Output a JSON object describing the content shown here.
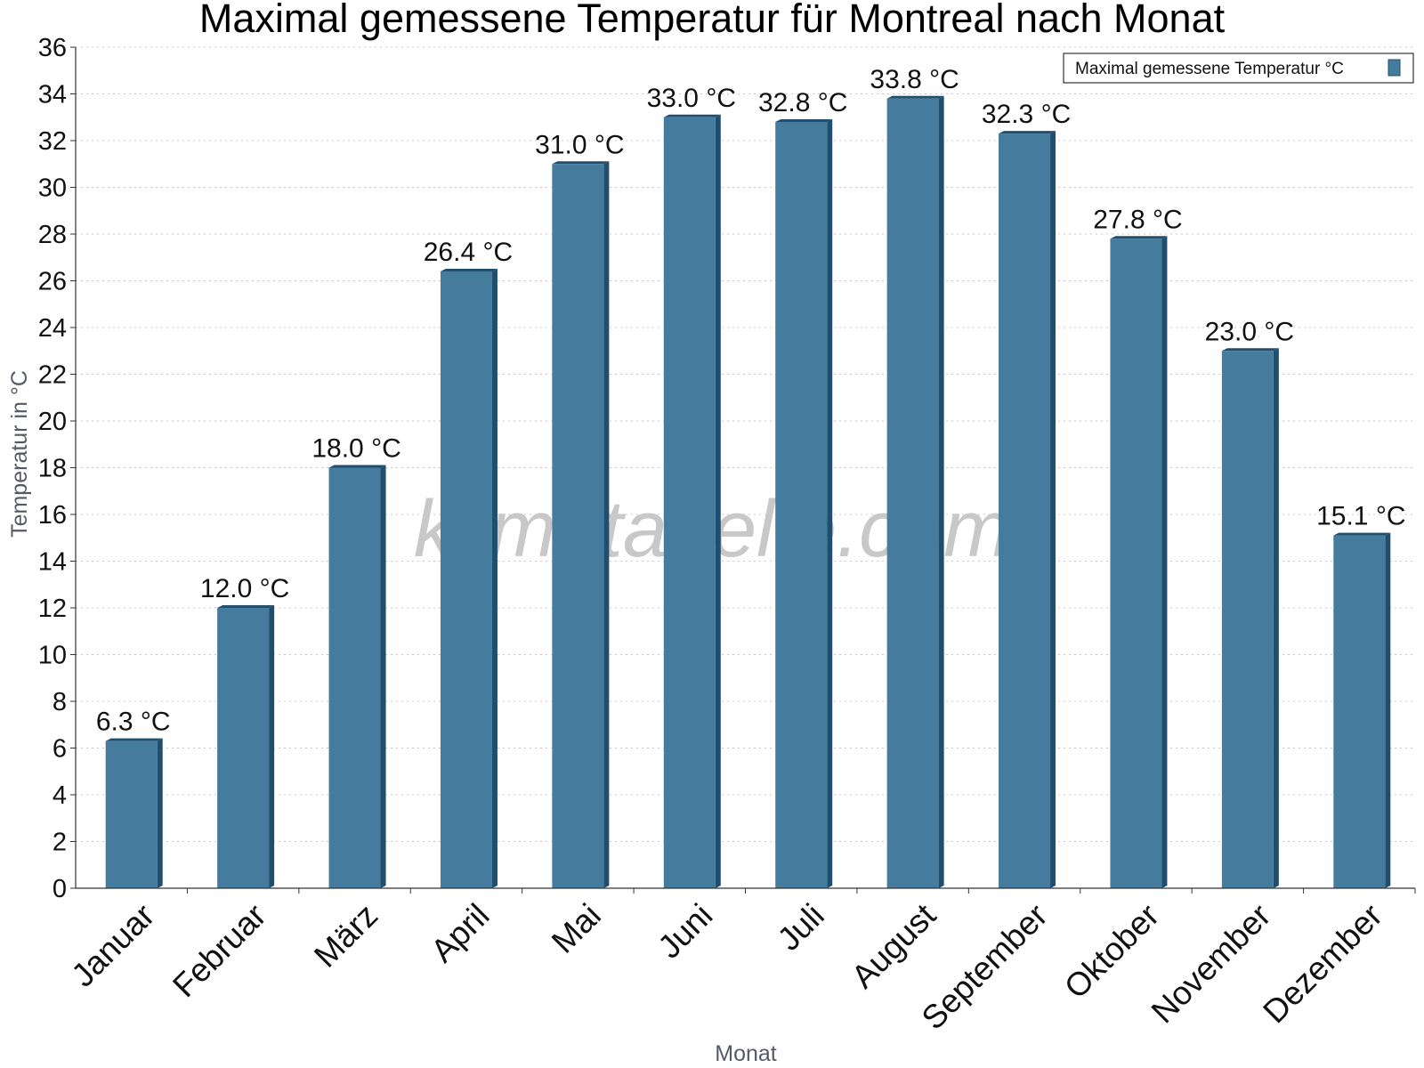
{
  "chart_data": {
    "type": "bar",
    "title": "Maximal gemessene Temperatur für Montreal nach Monat",
    "xlabel": "Monat",
    "ylabel": "Temperatur in °C",
    "categories": [
      "Januar",
      "Februar",
      "März",
      "April",
      "Mai",
      "Juni",
      "Juli",
      "August",
      "September",
      "Oktober",
      "November",
      "Dezember"
    ],
    "series": [
      {
        "name": "Maximal gemessene Temperatur °C",
        "values": [
          6.3,
          12.0,
          18.0,
          26.4,
          31.0,
          33.0,
          32.8,
          33.8,
          32.3,
          27.8,
          23.0,
          15.1
        ],
        "color": "#457b9d",
        "side_color": "#1f4e6e"
      }
    ],
    "data_labels": [
      "6.3 °C",
      "12.0 °C",
      "18.0 °C",
      "26.4 °C",
      "31.0 °C",
      "33.0 °C",
      "32.8 °C",
      "33.8 °C",
      "32.3 °C",
      "27.8 °C",
      "23.0 °C",
      "15.1 °C"
    ],
    "ylim": [
      0,
      36
    ],
    "yticks": [
      "0",
      "2",
      "4",
      "6",
      "8",
      "10",
      "12",
      "14",
      "16",
      "18",
      "20",
      "22",
      "24",
      "26",
      "28",
      "30",
      "32",
      "34",
      "36"
    ],
    "grid": "horizontal dotted",
    "legend_position": "top-right",
    "watermark": "klimatabelle.com"
  }
}
